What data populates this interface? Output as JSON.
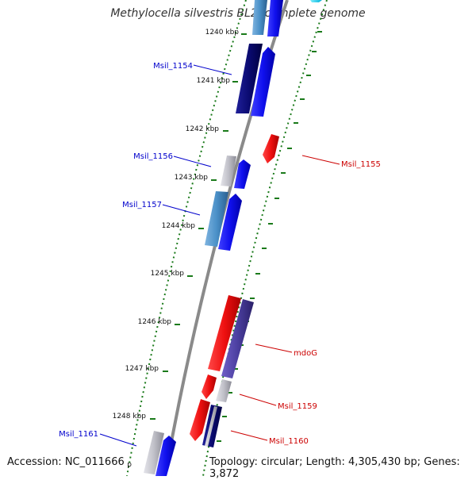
{
  "title": "Methylocella silvestris BL2, complete genome",
  "footer": {
    "accession": "Accession: NC_011666",
    "topology": "Topology: circular; Length: 4,305,430 bp; Genes: 3,872"
  },
  "ticks": [
    "1240 kbp",
    "1241 kbp",
    "1242 kbp",
    "1243 kbp",
    "1244 kbp",
    "1245 kbp",
    "1246 kbp",
    "1247 kbp",
    "1248 kbp",
    "kbp"
  ],
  "gene_labels": {
    "msil_1154": "Msil_1154",
    "msil_1156": "Msil_1156",
    "msil_1157": "Msil_1157",
    "msil_1161": "Msil_1161",
    "msil_1155": "Msil_1155",
    "mdog": "mdoG",
    "msil_1159": "Msil_1159",
    "msil_1160": "Msil_1160"
  },
  "colors": {
    "backbone": "#888888",
    "tick_green": "#1a7a1a",
    "forward_label": "#0000cc",
    "reverse_label": "#cc0000",
    "gene_blue": "#1010ee",
    "gene_navy": "#0a0a70",
    "gene_steel": "#4a90c8",
    "gene_red": "#ee1010",
    "gene_purple": "#4b3fa0",
    "gene_gray": "#c0c0c8",
    "gene_cyan": "#00c8e8"
  }
}
